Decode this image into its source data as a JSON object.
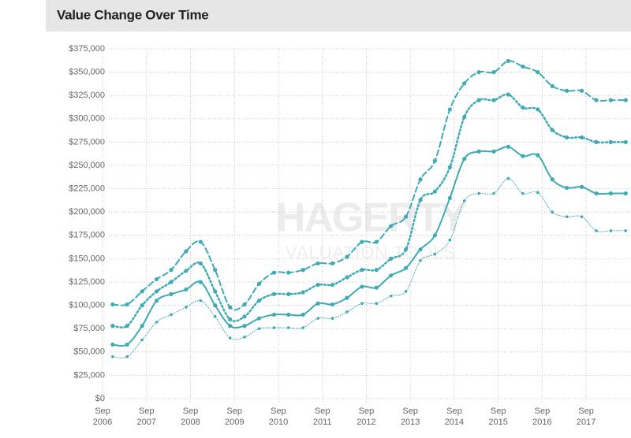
{
  "chart_data": {
    "type": "line",
    "title": "Value Change Over Time",
    "watermark": [
      "HAGERTY",
      "VALUATION TOOLS"
    ],
    "x": [
      2006.9,
      2007.23,
      2007.57,
      2007.9,
      2008.23,
      2008.57,
      2008.9,
      2009.23,
      2009.57,
      2009.9,
      2010.23,
      2010.57,
      2010.9,
      2011.23,
      2011.57,
      2011.9,
      2012.23,
      2012.57,
      2012.9,
      2013.23,
      2013.57,
      2013.9,
      2014.23,
      2014.57,
      2014.9,
      2015.23,
      2015.57,
      2015.9,
      2016.23,
      2016.57,
      2016.9,
      2017.23,
      2017.57,
      2017.9,
      2018.23,
      2018.57
    ],
    "series": [
      {
        "color": "#3eaab4",
        "style": "dashed",
        "width": 2,
        "values": [
          101000,
          101000,
          115000,
          128000,
          138000,
          158000,
          168000,
          138000,
          98000,
          101000,
          123000,
          135000,
          135000,
          138000,
          145000,
          145000,
          152000,
          168000,
          168000,
          185000,
          195000,
          235000,
          255000,
          310000,
          338000,
          350000,
          350000,
          362000,
          356000,
          350000,
          335000,
          330000,
          330000,
          320000,
          320000,
          320000
        ]
      },
      {
        "color": "#3eaab4",
        "style": "dotted",
        "width": 2.5,
        "values": [
          78000,
          78000,
          100000,
          115000,
          125000,
          137000,
          145000,
          115000,
          85000,
          88000,
          105000,
          112000,
          112000,
          114000,
          122000,
          122000,
          130000,
          138000,
          138000,
          150000,
          160000,
          213000,
          222000,
          248000,
          302000,
          320000,
          320000,
          326000,
          312000,
          310000,
          288000,
          280000,
          280000,
          275000,
          275000,
          275000
        ]
      },
      {
        "color": "#3eaab4",
        "style": "solid",
        "width": 2,
        "values": [
          58000,
          58000,
          78000,
          105000,
          112000,
          117000,
          125000,
          100000,
          78000,
          78000,
          86000,
          90000,
          90000,
          90000,
          102000,
          101000,
          108000,
          120000,
          119000,
          132000,
          140000,
          160000,
          175000,
          215000,
          257000,
          265000,
          265000,
          270000,
          260000,
          261000,
          235000,
          226000,
          227000,
          220000,
          220000,
          220000
        ]
      },
      {
        "color": "#3eaab4",
        "style": "dotted",
        "width": 1,
        "values": [
          45000,
          45000,
          63000,
          82000,
          90000,
          98000,
          105000,
          88000,
          65000,
          66000,
          75000,
          76000,
          76000,
          76000,
          86000,
          86000,
          93000,
          102000,
          102000,
          110000,
          115000,
          148000,
          155000,
          170000,
          212000,
          220000,
          220000,
          236000,
          220000,
          221000,
          200000,
          195000,
          195000,
          180000,
          180000,
          180000
        ]
      }
    ],
    "xlim": [
      2006.67,
      2018.69
    ],
    "xticks": [
      {
        "value": 2006.67,
        "label": "Sep 2006"
      },
      {
        "value": 2007.67,
        "label": "Sep 2007"
      },
      {
        "value": 2008.67,
        "label": "Sep 2008"
      },
      {
        "value": 2009.67,
        "label": "Sep 2009"
      },
      {
        "value": 2010.67,
        "label": "Sep 2010"
      },
      {
        "value": 2011.67,
        "label": "Sep 2011"
      },
      {
        "value": 2012.67,
        "label": "Sep 2012"
      },
      {
        "value": 2013.67,
        "label": "Sep 2013"
      },
      {
        "value": 2014.67,
        "label": "Sep 2014"
      },
      {
        "value": 2015.67,
        "label": "Sep 2015"
      },
      {
        "value": 2016.67,
        "label": "Sep 2016"
      },
      {
        "value": 2017.67,
        "label": "Sep 2017"
      }
    ],
    "ylim": [
      0,
      375000
    ],
    "yticks": [
      {
        "value": 0,
        "label": "$0"
      },
      {
        "value": 25000,
        "label": "$25,000"
      },
      {
        "value": 50000,
        "label": "$50,000"
      },
      {
        "value": 75000,
        "label": "$75,000"
      },
      {
        "value": 100000,
        "label": "$100,000"
      },
      {
        "value": 125000,
        "label": "$125,000"
      },
      {
        "value": 150000,
        "label": "$150,000"
      },
      {
        "value": 175000,
        "label": "$175,000"
      },
      {
        "value": 200000,
        "label": "$200,000"
      },
      {
        "value": 225000,
        "label": "$225,000"
      },
      {
        "value": 250000,
        "label": "$250,000"
      },
      {
        "value": 275000,
        "label": "$275,000"
      },
      {
        "value": 300000,
        "label": "$300,000"
      },
      {
        "value": 325000,
        "label": "$325,000"
      },
      {
        "value": 350000,
        "label": "$350,000"
      },
      {
        "value": 375000,
        "label": "$375,000"
      }
    ],
    "grid": true
  }
}
